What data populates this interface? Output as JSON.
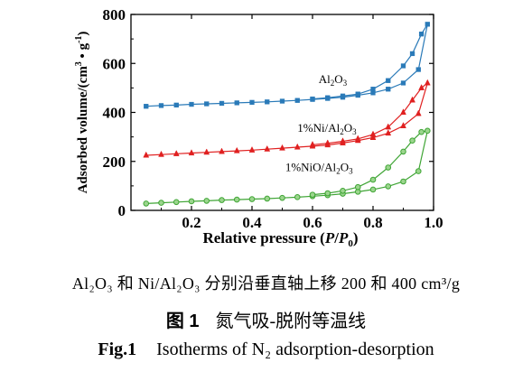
{
  "chart_data": {
    "type": "line",
    "xlabel": "Relative pressure (P/P0)",
    "ylabel": "Adsorbed volume/(cm3 • g-1)",
    "xlim": [
      0.0,
      1.0
    ],
    "ylim": [
      0,
      800
    ],
    "xticks": [
      "0.2",
      "0.4",
      "0.6",
      "0.8",
      "1.0"
    ],
    "yticks": [
      "0",
      "200",
      "400",
      "600",
      "800"
    ],
    "grid": false,
    "series": [
      {
        "name": "Al2O3",
        "color": "#2a7ab8",
        "marker": "square",
        "adsorption": [
          [
            0.05,
            425
          ],
          [
            0.1,
            428
          ],
          [
            0.15,
            430
          ],
          [
            0.2,
            433
          ],
          [
            0.25,
            435
          ],
          [
            0.3,
            437
          ],
          [
            0.35,
            439
          ],
          [
            0.4,
            441
          ],
          [
            0.45,
            443
          ],
          [
            0.5,
            446
          ],
          [
            0.55,
            449
          ],
          [
            0.6,
            453
          ],
          [
            0.65,
            457
          ],
          [
            0.7,
            462
          ],
          [
            0.75,
            470
          ],
          [
            0.8,
            480
          ],
          [
            0.85,
            495
          ],
          [
            0.9,
            520
          ],
          [
            0.95,
            575
          ],
          [
            0.98,
            760
          ]
        ],
        "desorption": [
          [
            0.98,
            760
          ],
          [
            0.96,
            720
          ],
          [
            0.93,
            640
          ],
          [
            0.9,
            590
          ],
          [
            0.85,
            530
          ],
          [
            0.8,
            495
          ],
          [
            0.75,
            475
          ],
          [
            0.7,
            467
          ],
          [
            0.65,
            460
          ],
          [
            0.6,
            455
          ]
        ]
      },
      {
        "name": "1%Ni/Al2O3",
        "color": "#e02020",
        "marker": "triangle",
        "adsorption": [
          [
            0.05,
            225
          ],
          [
            0.1,
            228
          ],
          [
            0.15,
            231
          ],
          [
            0.2,
            234
          ],
          [
            0.25,
            237
          ],
          [
            0.3,
            240
          ],
          [
            0.35,
            243
          ],
          [
            0.4,
            246
          ],
          [
            0.45,
            250
          ],
          [
            0.5,
            254
          ],
          [
            0.55,
            258
          ],
          [
            0.6,
            262
          ],
          [
            0.65,
            267
          ],
          [
            0.7,
            275
          ],
          [
            0.75,
            285
          ],
          [
            0.8,
            297
          ],
          [
            0.85,
            315
          ],
          [
            0.9,
            345
          ],
          [
            0.95,
            395
          ],
          [
            0.98,
            520
          ]
        ],
        "desorption": [
          [
            0.98,
            520
          ],
          [
            0.96,
            500
          ],
          [
            0.93,
            450
          ],
          [
            0.9,
            400
          ],
          [
            0.85,
            340
          ],
          [
            0.8,
            310
          ],
          [
            0.75,
            292
          ],
          [
            0.7,
            282
          ],
          [
            0.65,
            274
          ],
          [
            0.6,
            268
          ]
        ]
      },
      {
        "name": "1%NiO/Al2O3",
        "color": "#3fa535",
        "marker": "circle",
        "adsorption": [
          [
            0.05,
            28
          ],
          [
            0.1,
            31
          ],
          [
            0.15,
            34
          ],
          [
            0.2,
            37
          ],
          [
            0.25,
            39
          ],
          [
            0.3,
            42
          ],
          [
            0.35,
            44
          ],
          [
            0.4,
            46
          ],
          [
            0.45,
            48
          ],
          [
            0.5,
            51
          ],
          [
            0.55,
            54
          ],
          [
            0.6,
            58
          ],
          [
            0.65,
            62
          ],
          [
            0.7,
            68
          ],
          [
            0.75,
            76
          ],
          [
            0.8,
            85
          ],
          [
            0.85,
            98
          ],
          [
            0.9,
            118
          ],
          [
            0.95,
            160
          ],
          [
            0.98,
            325
          ]
        ],
        "desorption": [
          [
            0.98,
            325
          ],
          [
            0.96,
            320
          ],
          [
            0.93,
            285
          ],
          [
            0.9,
            240
          ],
          [
            0.85,
            175
          ],
          [
            0.8,
            125
          ],
          [
            0.75,
            95
          ],
          [
            0.7,
            80
          ],
          [
            0.65,
            70
          ],
          [
            0.6,
            64
          ]
        ]
      }
    ],
    "annotations": [
      {
        "text": "Al2O3",
        "series": 0
      },
      {
        "text": "1%Ni/Al2O3",
        "series": 1
      },
      {
        "text": "1%NiO/Al2O3",
        "series": 2
      }
    ]
  },
  "captions": {
    "note": "Al₂O₃ 和 Ni/Al₂O₃ 分别沿垂直轴上移 200 和 400 cm³/g",
    "fig_num_zh": "图 1",
    "title_zh": "氮气吸-脱附等温线",
    "fig_num_en": "Fig.1",
    "title_en": "Isotherms of N₂ adsorption-desorption"
  }
}
